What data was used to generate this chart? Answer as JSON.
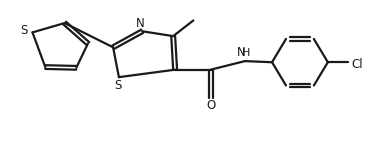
{
  "bg_color": "#ffffff",
  "line_color": "#1a1a1a",
  "line_width": 1.6,
  "font_size": 8.5,
  "xlim": [
    0,
    10
  ],
  "ylim": [
    0,
    4.2
  ]
}
